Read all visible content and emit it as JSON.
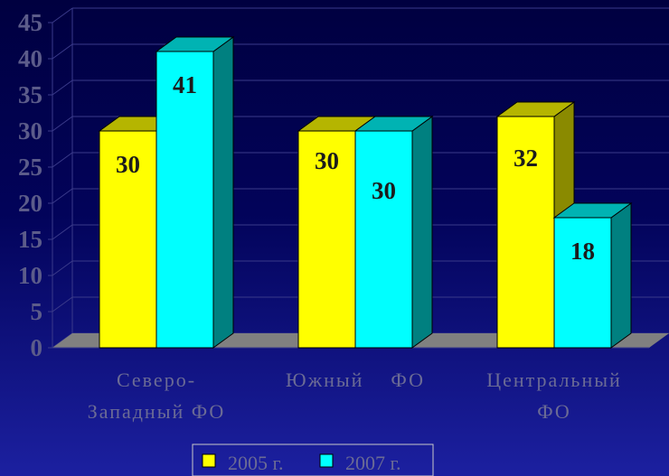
{
  "chart_data": {
    "type": "bar",
    "categories": [
      [
        "Северо-",
        "Западный ФО"
      ],
      [
        "Южный    ФО"
      ],
      [
        "Центральный",
        "ФО"
      ]
    ],
    "series": [
      {
        "name": "2005 г.",
        "values": [
          30,
          30,
          32
        ],
        "color": "#ffff00",
        "side_color": "#8a8a00",
        "top_color": "#b5b500"
      },
      {
        "name": "2007 г.",
        "values": [
          41,
          30,
          18
        ],
        "color": "#00ffff",
        "side_color": "#008080",
        "top_color": "#00b3b3"
      }
    ],
    "ylim": [
      0,
      45
    ],
    "yticks": [
      0,
      5,
      10,
      15,
      20,
      25,
      30,
      35,
      40,
      45
    ],
    "grid": true,
    "legend_position": "bottom-center",
    "background_color": "#000050",
    "grid_color": "#3a3a8a",
    "floor_color": "#808080"
  }
}
